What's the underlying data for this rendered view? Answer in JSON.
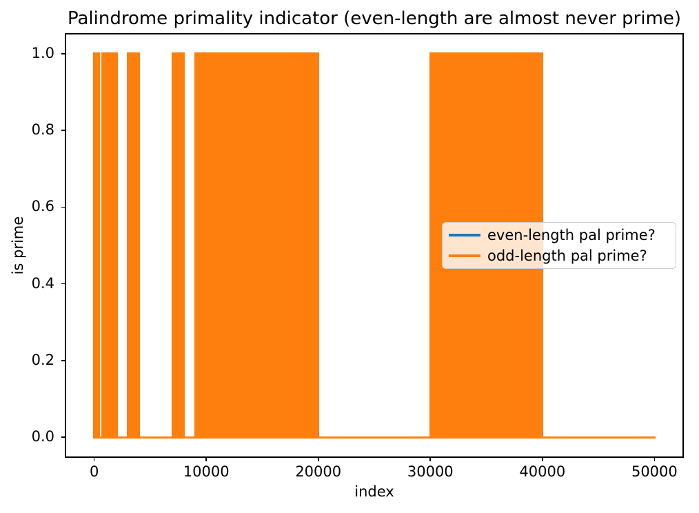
{
  "chart_data": {
    "type": "line",
    "title": "Palindrome primality indicator (even-length are almost never prime)",
    "xlabel": "index",
    "ylabel": "is prime",
    "xlim": [
      -2500,
      52500
    ],
    "ylim": [
      -0.05,
      1.05
    ],
    "xticks": [
      0,
      10000,
      20000,
      30000,
      40000,
      50000
    ],
    "xtick_labels": [
      "0",
      "10000",
      "20000",
      "30000",
      "40000",
      "50000"
    ],
    "yticks": [
      0,
      0.2,
      0.4,
      0.6,
      0.8,
      1
    ],
    "ytick_labels": [
      "0.0",
      "0.2",
      "0.4",
      "0.6",
      "0.8",
      "1.0"
    ],
    "grid": false,
    "legend_position": "center right",
    "axis_color": "#000000",
    "series": [
      {
        "name": "even-length pal prime?",
        "color": "#1f77b4",
        "x_range": [
          0,
          50000
        ],
        "baseline_value": 0,
        "values_summary": "indicator flat at 0 across the whole index range; not visible in the plot area (covered by the orange series baseline)",
        "prime_bands": []
      },
      {
        "name": "odd-length pal prime?",
        "color": "#ff7f0e",
        "x_range": [
          0,
          50000
        ],
        "baseline_value": 0,
        "peak_value": 1,
        "values_summary": "0/1 indicator oscillating between 0 and 1 so densely that it renders as solid orange blocks spanning y=0..1 over the index ranges listed in prime_bands; flat at 0 elsewhere",
        "prime_bands": [
          [
            0,
            400
          ],
          [
            700,
            2000
          ],
          [
            3000,
            4000
          ],
          [
            7000,
            8000
          ],
          [
            9000,
            20000
          ],
          [
            30000,
            40000
          ]
        ]
      }
    ]
  }
}
